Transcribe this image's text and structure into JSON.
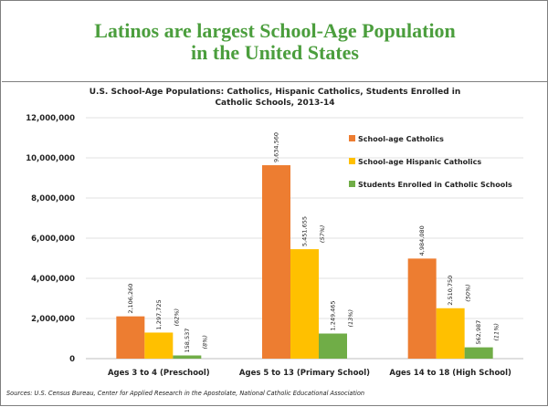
{
  "slide": {
    "title": "Latinos are largest School-Age Population in the United States",
    "sources": "Sources: U.S. Census Bureau, Center for Applied Research in the Apostolate, National Catholic Educational Association"
  },
  "chart_data": {
    "type": "bar",
    "title": "U.S. School-Age Populations: Catholics, Hispanic Catholics, Students Enrolled in Catholic Schools, 2013-14",
    "categories": [
      "Ages 3 to 4 (Preschool)",
      "Ages 5 to 13 (Primary School)",
      "Ages 14 to 18 (High School)"
    ],
    "series": [
      {
        "name": "School-age Catholics",
        "color": "#ed7d31",
        "values": [
          2106260,
          9634560,
          4984080
        ],
        "labels": [
          "2,106,260",
          "9,634,560",
          "4,984,080"
        ],
        "pct": [
          "",
          "",
          ""
        ]
      },
      {
        "name": "School-age Hispanic Catholics",
        "color": "#ffc000",
        "values": [
          1297725,
          5451655,
          2510750
        ],
        "labels": [
          "1,297,725",
          "5,451,655",
          "2,510,750"
        ],
        "pct": [
          "(62%)",
          "(57%)",
          "(50%)"
        ]
      },
      {
        "name": "Students Enrolled in Catholic Schools",
        "color": "#70ad47",
        "values": [
          158537,
          1249465,
          562987
        ],
        "labels": [
          "158,537",
          "1,249,465",
          "562,987"
        ],
        "pct": [
          "(8%)",
          "(13%)",
          "(11%)"
        ]
      }
    ],
    "ylim": [
      0,
      12000000
    ],
    "yticks": [
      0,
      2000000,
      4000000,
      6000000,
      8000000,
      10000000,
      12000000
    ],
    "ytick_labels": [
      "0",
      "2,000,000",
      "4,000,000",
      "6,000,000",
      "8,000,000",
      "10,000,000",
      "12,000,000"
    ],
    "grid": true,
    "legend_position": "right"
  }
}
